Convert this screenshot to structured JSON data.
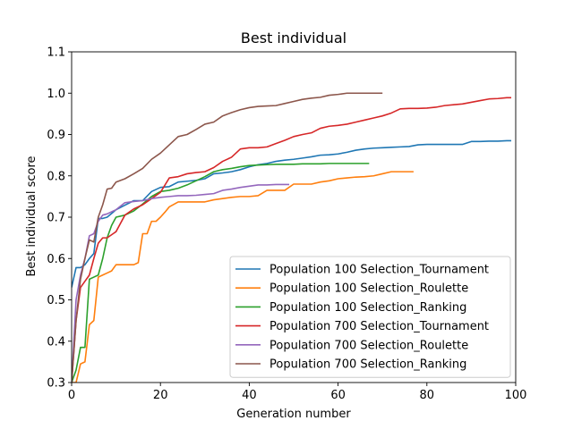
{
  "chart_data": {
    "type": "line",
    "title": "Best individual",
    "xlabel": "Generation number",
    "ylabel": "Best individual score",
    "xlim": [
      0,
      100
    ],
    "ylim": [
      0.3,
      1.1
    ],
    "xticks": [
      "0",
      "20",
      "40",
      "60",
      "80",
      "100"
    ],
    "yticks": [
      "0.3",
      "0.4",
      "0.5",
      "0.6",
      "0.7",
      "0.8",
      "0.9",
      "1.0",
      "1.1"
    ],
    "legend_position": "lower-right",
    "series": [
      {
        "name": "Population 100 Selection_Tournament",
        "color": "#1f77b4",
        "x": [
          0,
          1,
          2,
          3,
          4,
          5,
          6,
          7,
          8,
          10,
          12,
          14,
          16,
          18,
          20,
          22,
          24,
          26,
          28,
          30,
          32,
          34,
          36,
          38,
          40,
          42,
          44,
          46,
          48,
          50,
          52,
          54,
          56,
          58,
          60,
          62,
          64,
          66,
          68,
          70,
          72,
          74,
          76,
          78,
          80,
          82,
          84,
          86,
          88,
          90,
          92,
          94,
          96,
          98,
          99
        ],
        "y": [
          0.53,
          0.578,
          0.578,
          0.585,
          0.6,
          0.612,
          0.697,
          0.697,
          0.7,
          0.718,
          0.729,
          0.74,
          0.74,
          0.762,
          0.772,
          0.774,
          0.785,
          0.787,
          0.789,
          0.793,
          0.805,
          0.807,
          0.81,
          0.815,
          0.822,
          0.827,
          0.83,
          0.835,
          0.838,
          0.84,
          0.843,
          0.846,
          0.85,
          0.851,
          0.853,
          0.857,
          0.862,
          0.865,
          0.867,
          0.868,
          0.869,
          0.87,
          0.871,
          0.875,
          0.876,
          0.876,
          0.876,
          0.876,
          0.876,
          0.883,
          0.883,
          0.884,
          0.884,
          0.885,
          0.885
        ]
      },
      {
        "name": "Population 100 Selection_Roulette",
        "color": "#ff7f0e",
        "x": [
          0,
          1,
          2,
          3,
          4,
          5,
          6,
          7,
          8,
          9,
          10,
          12,
          14,
          15,
          16,
          17,
          18,
          19,
          20,
          21,
          22,
          24,
          26,
          28,
          30,
          32,
          34,
          36,
          38,
          40,
          42,
          44,
          46,
          48,
          50,
          52,
          54,
          56,
          58,
          60,
          62,
          64,
          66,
          68,
          70,
          72,
          74,
          76,
          77
        ],
        "y": [
          0.3,
          0.3,
          0.345,
          0.35,
          0.44,
          0.45,
          0.555,
          0.56,
          0.565,
          0.57,
          0.585,
          0.585,
          0.585,
          0.59,
          0.66,
          0.66,
          0.69,
          0.69,
          0.7,
          0.712,
          0.725,
          0.737,
          0.737,
          0.737,
          0.737,
          0.742,
          0.745,
          0.748,
          0.75,
          0.75,
          0.752,
          0.765,
          0.765,
          0.765,
          0.78,
          0.78,
          0.78,
          0.785,
          0.788,
          0.793,
          0.795,
          0.797,
          0.798,
          0.8,
          0.805,
          0.81,
          0.81,
          0.81,
          0.81
        ]
      },
      {
        "name": "Population 100 Selection_Ranking",
        "color": "#2ca02c",
        "x": [
          0,
          1,
          2,
          3,
          4,
          5,
          6,
          7,
          8,
          9,
          10,
          12,
          14,
          16,
          18,
          20,
          22,
          24,
          26,
          28,
          30,
          32,
          34,
          36,
          38,
          40,
          42,
          44,
          46,
          48,
          50,
          52,
          54,
          56,
          58,
          60,
          62,
          64,
          66,
          67
        ],
        "y": [
          0.3,
          0.33,
          0.385,
          0.385,
          0.55,
          0.555,
          0.56,
          0.6,
          0.65,
          0.68,
          0.7,
          0.705,
          0.715,
          0.732,
          0.75,
          0.762,
          0.765,
          0.77,
          0.778,
          0.788,
          0.798,
          0.81,
          0.815,
          0.818,
          0.822,
          0.825,
          0.826,
          0.827,
          0.828,
          0.828,
          0.828,
          0.829,
          0.829,
          0.829,
          0.83,
          0.83,
          0.83,
          0.83,
          0.83,
          0.83
        ]
      },
      {
        "name": "Population 700 Selection_Tournament",
        "color": "#d62728",
        "x": [
          0,
          1,
          2,
          3,
          4,
          5,
          6,
          7,
          8,
          10,
          12,
          14,
          16,
          18,
          20,
          22,
          24,
          26,
          28,
          30,
          32,
          34,
          36,
          38,
          40,
          42,
          44,
          46,
          48,
          50,
          52,
          54,
          56,
          58,
          60,
          62,
          64,
          66,
          68,
          70,
          72,
          74,
          76,
          78,
          80,
          82,
          84,
          86,
          88,
          90,
          92,
          94,
          96,
          98,
          99
        ],
        "y": [
          0.3,
          0.45,
          0.53,
          0.545,
          0.56,
          0.6,
          0.637,
          0.65,
          0.65,
          0.665,
          0.705,
          0.72,
          0.73,
          0.745,
          0.76,
          0.795,
          0.798,
          0.805,
          0.808,
          0.81,
          0.82,
          0.835,
          0.845,
          0.865,
          0.868,
          0.868,
          0.87,
          0.878,
          0.886,
          0.895,
          0.9,
          0.904,
          0.915,
          0.92,
          0.922,
          0.925,
          0.93,
          0.935,
          0.94,
          0.945,
          0.952,
          0.962,
          0.963,
          0.963,
          0.964,
          0.966,
          0.97,
          0.972,
          0.974,
          0.978,
          0.982,
          0.986,
          0.987,
          0.989,
          0.989
        ]
      },
      {
        "name": "Population 700 Selection_Roulette",
        "color": "#9467bd",
        "x": [
          0,
          1,
          2,
          3,
          4,
          5,
          6,
          7,
          8,
          10,
          12,
          14,
          16,
          18,
          20,
          22,
          24,
          26,
          28,
          30,
          32,
          34,
          36,
          38,
          40,
          42,
          44,
          46,
          48,
          49
        ],
        "y": [
          0.3,
          0.5,
          0.56,
          0.6,
          0.655,
          0.66,
          0.69,
          0.705,
          0.708,
          0.718,
          0.735,
          0.738,
          0.74,
          0.745,
          0.748,
          0.75,
          0.752,
          0.752,
          0.753,
          0.755,
          0.757,
          0.765,
          0.768,
          0.772,
          0.775,
          0.778,
          0.778,
          0.779,
          0.779,
          0.779
        ]
      },
      {
        "name": "Population 700 Selection_Ranking",
        "color": "#8c564b",
        "x": [
          0,
          1,
          2,
          3,
          4,
          5,
          6,
          7,
          8,
          9,
          10,
          12,
          14,
          16,
          18,
          20,
          22,
          24,
          26,
          28,
          30,
          32,
          34,
          36,
          38,
          40,
          42,
          44,
          46,
          48,
          50,
          52,
          54,
          56,
          58,
          60,
          62,
          64,
          66,
          68,
          70
        ],
        "y": [
          0.3,
          0.45,
          0.55,
          0.6,
          0.645,
          0.64,
          0.7,
          0.73,
          0.768,
          0.77,
          0.785,
          0.793,
          0.805,
          0.818,
          0.84,
          0.855,
          0.875,
          0.895,
          0.9,
          0.912,
          0.925,
          0.93,
          0.945,
          0.953,
          0.96,
          0.965,
          0.968,
          0.969,
          0.97,
          0.975,
          0.98,
          0.985,
          0.988,
          0.99,
          0.995,
          0.997,
          1.0,
          1.0,
          1.0,
          1.0,
          1.0
        ]
      }
    ]
  }
}
